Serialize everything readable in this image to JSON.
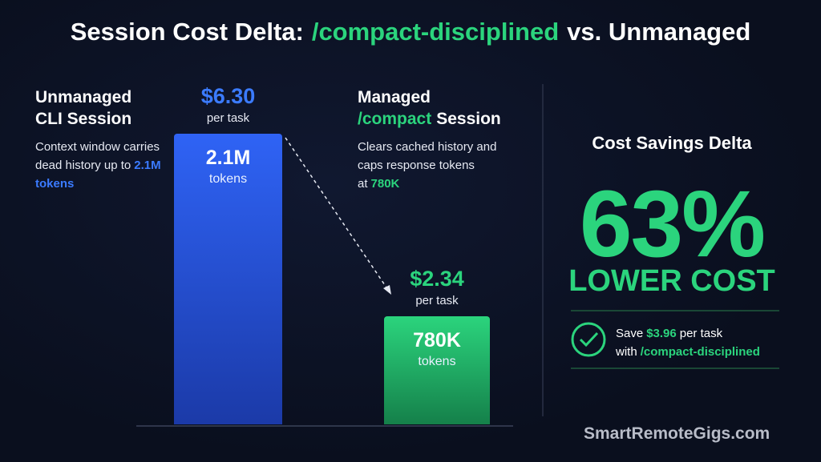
{
  "chart_data": {
    "type": "bar",
    "title": [
      {
        "text": "Session Cost Delta:",
        "color": "#ffffff"
      },
      {
        "text": "/compact-disciplined",
        "color": "#2bd47d"
      },
      {
        "text": "vs. Unmanaged",
        "color": "#ffffff"
      }
    ],
    "categories": [
      [
        {
          "text": "Unmanaged CLI Session",
          "color": "#ffffff"
        }
      ],
      [
        {
          "text": "Managed",
          "color": "#ffffff"
        },
        {
          "text": "/compact",
          "color": "#2bd47d"
        },
        {
          "text": "Session",
          "color": "#ffffff"
        }
      ]
    ],
    "notes": [
      [
        {
          "text": "Context window carries dead history up to",
          "color": "#e6e9f2"
        },
        {
          "text": "2.1M tokens",
          "color": "#3b7bff"
        }
      ],
      [
        {
          "text": "Clears cached history and caps response tokens at",
          "color": "#e6e9f2"
        },
        {
          "text": "780K",
          "color": "#2bd47d"
        }
      ]
    ],
    "values": [
      2100000,
      780000
    ],
    "value_labels": [
      "2.1M",
      "780K"
    ],
    "value_unit": "tokens",
    "cost_labels": [
      "$6.30",
      "$2.34"
    ],
    "cost_unit": "per task",
    "colors": [
      [
        "#2f63f5",
        "#1b3aa8"
      ],
      [
        "#2bd47d",
        "#15804a"
      ]
    ],
    "cost_colors": [
      "#3b7bff",
      "#2bd47d"
    ],
    "ylim": [
      0,
      2100000
    ]
  },
  "savings": {
    "heading": "Cost Savings Delta",
    "percent": "63%",
    "caption": "LOWER COST",
    "detail": [
      {
        "text": "Save",
        "color": "#ffffff"
      },
      {
        "text": "$3.96",
        "color": "#2bd47d"
      },
      {
        "text": "per task with",
        "color": "#ffffff"
      },
      {
        "text": "/compact-disciplined",
        "color": "#2bd47d"
      }
    ]
  },
  "watermark": "SmartRemoteGigs.com"
}
